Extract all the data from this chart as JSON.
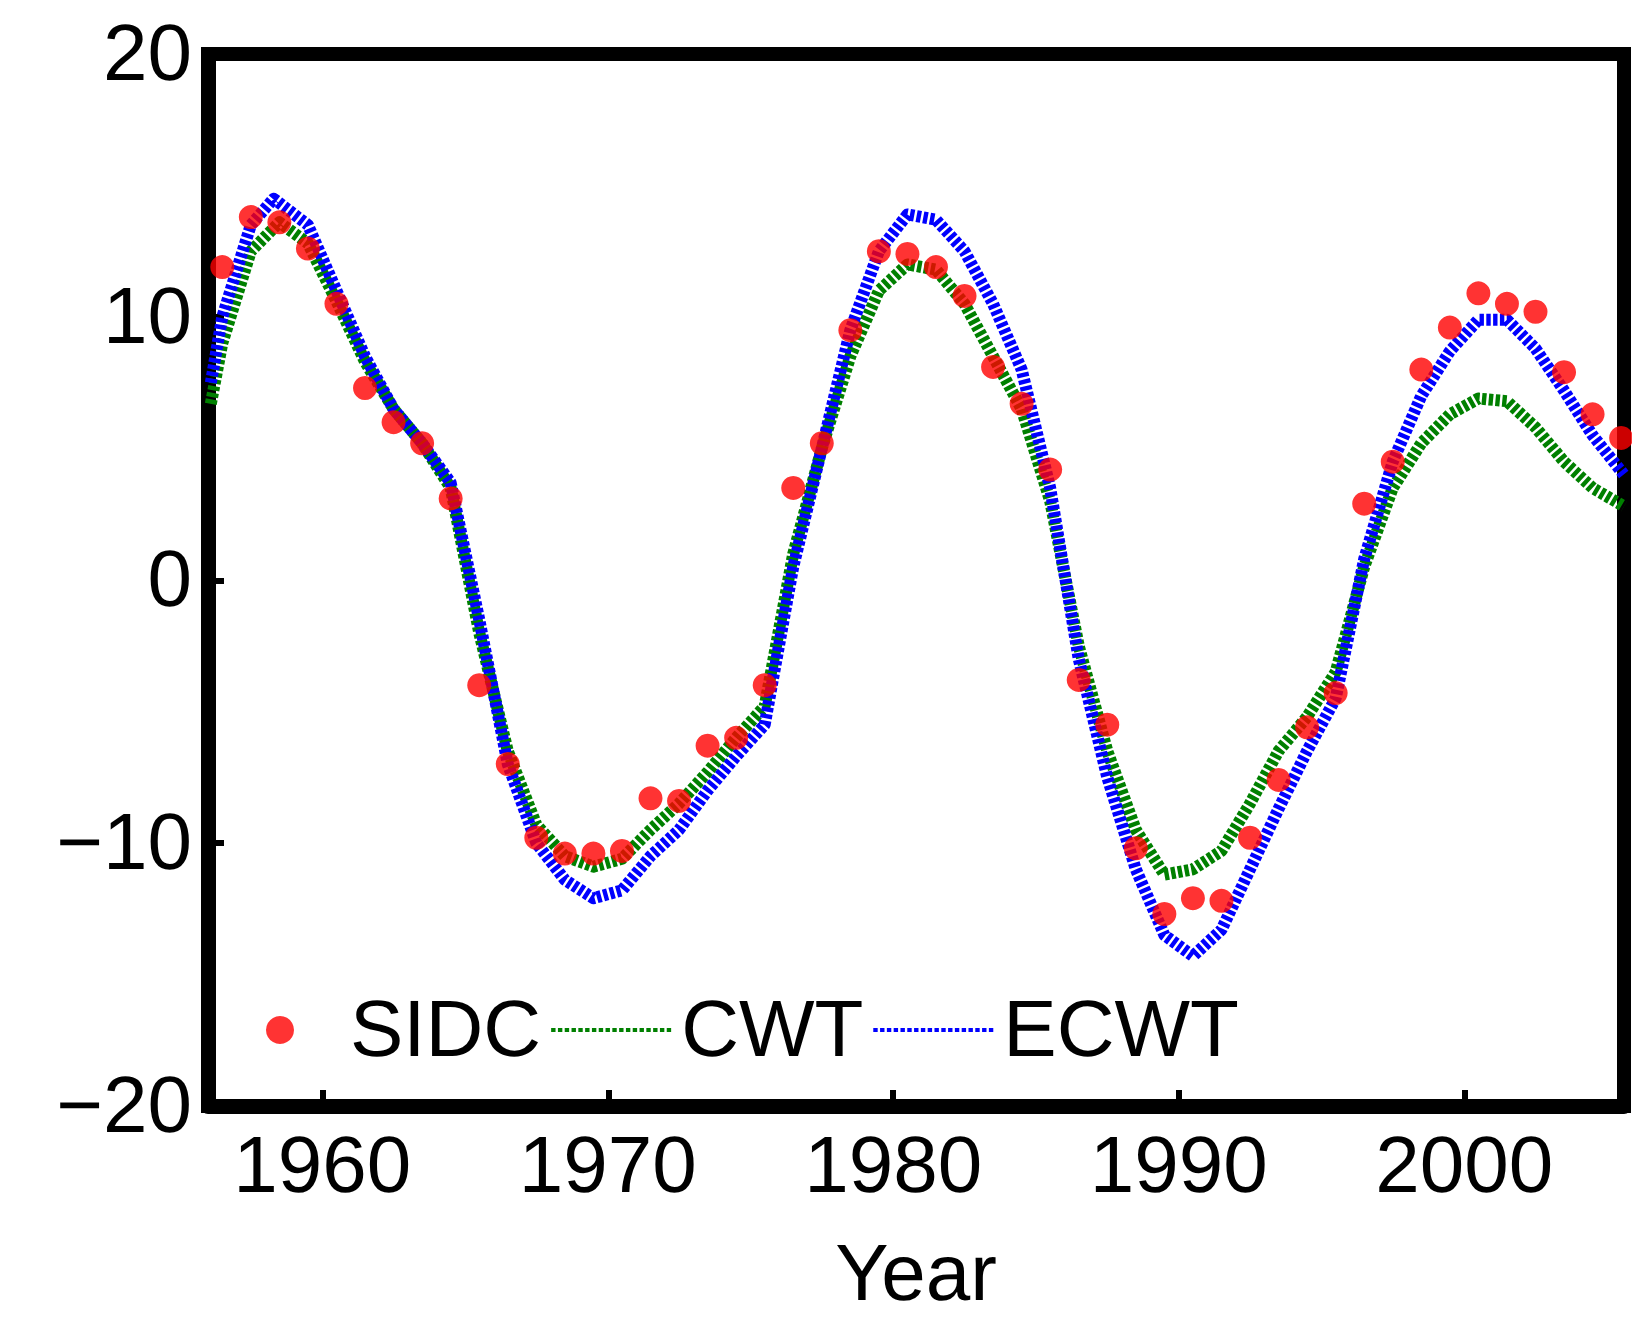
{
  "chart_data": {
    "type": "line",
    "xlabel": "Year",
    "xlim": [
      1956,
      2005.6
    ],
    "xticks": [
      1960,
      1970,
      1980,
      1990,
      2000
    ],
    "ylim": [
      -20,
      20
    ],
    "yticks": [
      -20,
      -10,
      0,
      10,
      20
    ],
    "grid": false,
    "legend": "bottom left",
    "series": [
      {
        "name": "SIDC",
        "type": "scatter",
        "marker": "circle",
        "color": "#ff0000",
        "x": [
          1956.5,
          1957.5,
          1958.5,
          1959.5,
          1960.5,
          1961.5,
          1962.5,
          1963.5,
          1964.5,
          1965.5,
          1966.5,
          1967.5,
          1968.5,
          1969.5,
          1970.5,
          1971.5,
          1972.5,
          1973.5,
          1974.5,
          1975.5,
          1976.5,
          1977.5,
          1978.5,
          1979.5,
          1980.5,
          1981.5,
          1982.5,
          1983.5,
          1984.5,
          1985.5,
          1986.5,
          1987.5,
          1988.5,
          1989.5,
          1990.5,
          1991.5,
          1992.5,
          1993.5,
          1994.5,
          1995.5,
          1996.5,
          1997.5,
          1998.5,
          1999.5,
          2000.5,
          2001.5,
          2002.5,
          2003.5,
          2004.5,
          2005.5
        ],
        "values": [
          11.9,
          13.8,
          13.6,
          12.6,
          10.5,
          7.3,
          6.0,
          5.2,
          3.1,
          -4.0,
          -7.0,
          -9.8,
          -10.4,
          -10.4,
          -10.3,
          -8.3,
          -8.4,
          -6.3,
          -6.0,
          -4.0,
          3.5,
          5.2,
          9.5,
          12.5,
          12.4,
          11.9,
          10.8,
          8.1,
          6.7,
          4.2,
          -3.8,
          -5.5,
          -10.2,
          -12.7,
          -12.1,
          -12.2,
          -9.8,
          -7.6,
          -5.6,
          -4.3,
          2.9,
          4.5,
          8.0,
          9.6,
          10.9,
          10.5,
          10.2,
          7.9,
          6.3,
          5.4
        ]
      },
      {
        "name": "CWT",
        "marker": "none",
        "line_style": "dashed",
        "color": "#008000",
        "x": [
          1956.1,
          1956.5,
          1957.5,
          1958.5,
          1959.5,
          1960.5,
          1961.5,
          1962.5,
          1963.5,
          1964.5,
          1965.5,
          1966.5,
          1967.5,
          1968.5,
          1969.5,
          1970.5,
          1971.5,
          1972.5,
          1973.5,
          1974.5,
          1975.5,
          1976.5,
          1977.5,
          1978.5,
          1979.5,
          1980.5,
          1981.5,
          1982.5,
          1983.5,
          1984.5,
          1985.5,
          1986.5,
          1987.5,
          1988.5,
          1989.5,
          1990.5,
          1991.5,
          1992.5,
          1993.5,
          1994.5,
          1995.5,
          1996.5,
          1997.5,
          1998.5,
          1999.5,
          2000.5,
          2001.5,
          2002.5,
          2003.5,
          2004.5,
          2005.6
        ],
        "values": [
          6.7,
          9,
          12.5,
          13.6,
          12.8,
          10.6,
          8.3,
          6.5,
          5.2,
          3.5,
          -2.0,
          -6.5,
          -9.3,
          -10.5,
          -10.9,
          -10.6,
          -9.5,
          -8.5,
          -7.3,
          -6.0,
          -4.8,
          1.0,
          5.0,
          8.5,
          11.0,
          12.0,
          11.8,
          10.5,
          8.5,
          6.5,
          3.0,
          -2.5,
          -6.5,
          -9.5,
          -11.2,
          -11.0,
          -10.3,
          -8.5,
          -6.5,
          -5.2,
          -3.5,
          0.5,
          3.5,
          5.2,
          6.3,
          6.9,
          6.8,
          5.8,
          4.5,
          3.5,
          2.8
        ]
      },
      {
        "name": "ECWT",
        "marker": "none",
        "line_style": "dashed",
        "color": "#0000ff",
        "x": [
          1956.1,
          1956.5,
          1957.5,
          1958.3,
          1959.5,
          1960.5,
          1961.5,
          1962.5,
          1963.5,
          1964.5,
          1965.5,
          1966.5,
          1967.5,
          1968.5,
          1969.5,
          1970.5,
          1971.5,
          1972.5,
          1973.5,
          1974.5,
          1975.5,
          1976.5,
          1977.5,
          1978.5,
          1979.5,
          1980.5,
          1981.5,
          1982.5,
          1983.5,
          1984.5,
          1985.5,
          1986.5,
          1987.5,
          1988.5,
          1989.5,
          1990.5,
          1991.5,
          1992.5,
          1993.5,
          1994.5,
          1995.5,
          1996.5,
          1997.5,
          1998.5,
          1999.5,
          2000.5,
          2001.5,
          2002.5,
          2003.5,
          2004.5,
          2005.6
        ],
        "values": [
          7.5,
          10,
          13.5,
          14.5,
          13.5,
          11,
          8.5,
          6.5,
          5.2,
          3.7,
          -1.5,
          -7,
          -10,
          -11.4,
          -12.1,
          -11.8,
          -10.5,
          -9.5,
          -8,
          -6.7,
          -5.5,
          0.5,
          5,
          9.5,
          12.5,
          13.9,
          13.7,
          12.5,
          10.5,
          8.0,
          3.5,
          -3,
          -7.5,
          -11,
          -13.5,
          -14.3,
          -13.3,
          -11,
          -8.7,
          -6.5,
          -4.5,
          0.8,
          4.5,
          7.0,
          8.7,
          9.9,
          9.9,
          8.8,
          7.2,
          5.5,
          4.0
        ]
      }
    ]
  }
}
